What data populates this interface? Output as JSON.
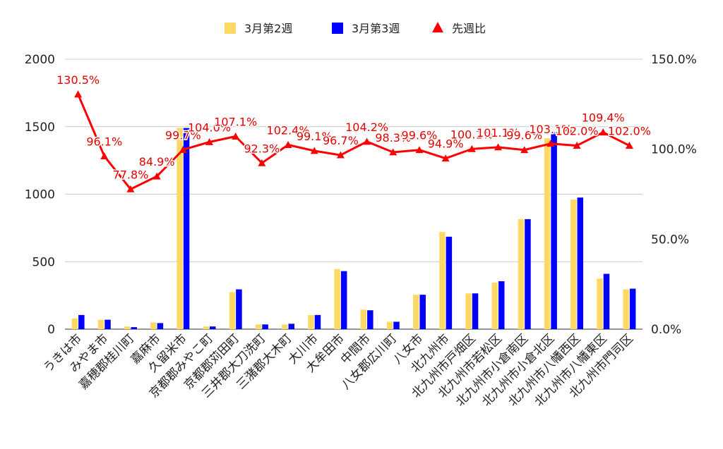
{
  "chart_data": {
    "type": "bar",
    "categories": [
      "うきは市",
      "みやま市",
      "嘉穂郡桂川町",
      "嘉麻市",
      "久留米市",
      "京都郡みやこ町",
      "京都郡苅田町",
      "三井郡大刀洗町",
      "三潴郡大木町",
      "大川市",
      "大牟田市",
      "中間市",
      "八女郡広川町",
      "八女市",
      "北九州市",
      "北九州市戸畑区",
      "北九州市若松区",
      "北九州市小倉南区",
      "北九州市小倉北区",
      "北九州市八幡西区",
      "北九州市八幡東区",
      "北九州市門司区"
    ],
    "series": [
      {
        "name": "3月第2週",
        "type": "bar",
        "axis": "left",
        "color": "#ffd966",
        "values": [
          80,
          70,
          20,
          50,
          1490,
          20,
          275,
          35,
          35,
          105,
          445,
          145,
          55,
          255,
          720,
          265,
          345,
          815,
          1415,
          960,
          375,
          295
        ]
      },
      {
        "name": "3月第3週",
        "type": "bar",
        "axis": "left",
        "color": "#0000ff",
        "values": [
          105,
          70,
          15,
          45,
          1490,
          20,
          295,
          35,
          40,
          105,
          430,
          140,
          55,
          255,
          685,
          265,
          355,
          815,
          1460,
          975,
          410,
          300
        ]
      },
      {
        "name": "先週比",
        "type": "line",
        "axis": "right",
        "color": "#ff0000",
        "marker": "triangle",
        "values": [
          130.5,
          96.1,
          77.8,
          84.9,
          99.7,
          104.0,
          107.1,
          92.3,
          102.4,
          99.1,
          96.7,
          104.2,
          98.3,
          99.6,
          94.9,
          100.1,
          101.1,
          99.6,
          103.1,
          102.0,
          109.4,
          102.0
        ],
        "labels": [
          "130.5%",
          "96.1%",
          "77.8%",
          "84.9%",
          "99.7%",
          "104.0%",
          "107.1%",
          "92.3%",
          "102.4%",
          "99.1%",
          "96.7%",
          "104.2%",
          "98.3%",
          "99.6%",
          "94.9%",
          "100.1%",
          "101.1%",
          "99.6%",
          "103.1%",
          "102.0%",
          "109.4%",
          "102.0%"
        ]
      }
    ],
    "y_left": {
      "ylim": [
        0,
        2000
      ],
      "ticks": [
        "0",
        "500",
        "1000",
        "1500",
        "2000"
      ],
      "tick_values": [
        0,
        500,
        1000,
        1500,
        2000
      ]
    },
    "y_right": {
      "ylim": [
        0,
        150
      ],
      "ticks": [
        "0.0%",
        "50.0%",
        "100.0%",
        "150.0%"
      ],
      "tick_values": [
        0,
        50,
        100,
        150
      ]
    },
    "grid": true,
    "legend_position": "top-center",
    "title": "",
    "xlabel": "",
    "ylabel": ""
  }
}
